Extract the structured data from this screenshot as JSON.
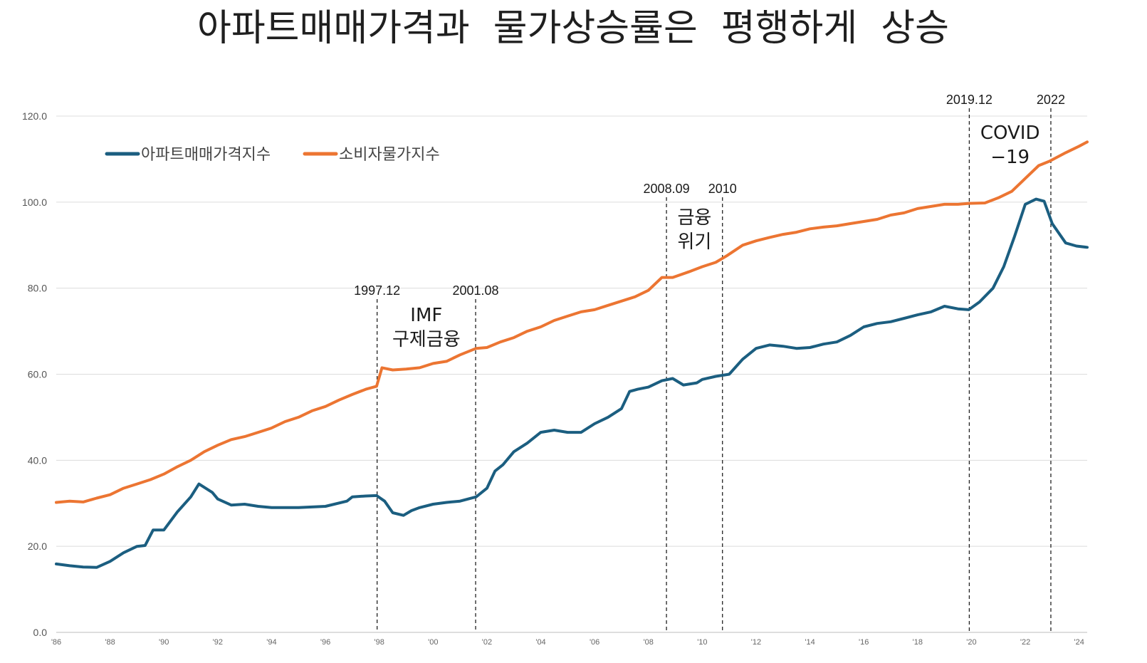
{
  "chart_data": {
    "type": "line",
    "title": "아파트매매가격과  물가상승률은  평행하게  상승",
    "xlabel": "",
    "ylabel": "",
    "x_range": [
      1986.0,
      2024.3
    ],
    "ylim": [
      0,
      120
    ],
    "y_ticks": [
      "0.0",
      "20.0",
      "40.0",
      "60.0",
      "80.0",
      "100.0",
      "120.0"
    ],
    "x_ticks": [
      {
        "year": 1986,
        "label": "'86"
      },
      {
        "year": 1988,
        "label": "'88"
      },
      {
        "year": 1990,
        "label": "'90"
      },
      {
        "year": 1992,
        "label": "'92"
      },
      {
        "year": 1994,
        "label": "'94"
      },
      {
        "year": 1996,
        "label": "'96"
      },
      {
        "year": 1998,
        "label": "'98"
      },
      {
        "year": 2000,
        "label": "'00"
      },
      {
        "year": 2002,
        "label": "'02"
      },
      {
        "year": 2004,
        "label": "'04"
      },
      {
        "year": 2006,
        "label": "'06"
      },
      {
        "year": 2008,
        "label": "'08"
      },
      {
        "year": 2010,
        "label": "'10"
      },
      {
        "year": 2012,
        "label": "'12"
      },
      {
        "year": 2014,
        "label": "'14"
      },
      {
        "year": 2016,
        "label": "'16"
      },
      {
        "year": 2018,
        "label": "'18"
      },
      {
        "year": 2020,
        "label": "'20"
      },
      {
        "year": 2022,
        "label": "'22"
      },
      {
        "year": 2024,
        "label": "'24"
      }
    ],
    "grid": true,
    "legend_position": "top-left",
    "series": [
      {
        "name": "아파트매매가격지수",
        "color": "#1b5e80",
        "points": [
          [
            1986.0,
            15.9
          ],
          [
            1986.5,
            15.5
          ],
          [
            1987.0,
            15.2
          ],
          [
            1987.5,
            15.1
          ],
          [
            1988.0,
            16.5
          ],
          [
            1988.5,
            18.5
          ],
          [
            1989.0,
            20.0
          ],
          [
            1989.3,
            20.2
          ],
          [
            1989.6,
            23.8
          ],
          [
            1990.0,
            23.8
          ],
          [
            1990.5,
            28.0
          ],
          [
            1991.0,
            31.5
          ],
          [
            1991.3,
            34.5
          ],
          [
            1991.8,
            32.5
          ],
          [
            1992.0,
            31.0
          ],
          [
            1992.5,
            29.6
          ],
          [
            1993.0,
            29.8
          ],
          [
            1993.5,
            29.3
          ],
          [
            1994.0,
            29.0
          ],
          [
            1995.0,
            29.0
          ],
          [
            1996.0,
            29.3
          ],
          [
            1996.8,
            30.5
          ],
          [
            1997.0,
            31.5
          ],
          [
            1997.5,
            31.7
          ],
          [
            1997.9,
            31.8
          ],
          [
            1998.2,
            30.5
          ],
          [
            1998.5,
            27.8
          ],
          [
            1998.9,
            27.2
          ],
          [
            1999.2,
            28.3
          ],
          [
            1999.5,
            29.0
          ],
          [
            2000.0,
            29.8
          ],
          [
            2000.5,
            30.2
          ],
          [
            2001.0,
            30.5
          ],
          [
            2001.6,
            31.5
          ],
          [
            2002.0,
            33.5
          ],
          [
            2002.3,
            37.5
          ],
          [
            2002.6,
            39.0
          ],
          [
            2003.0,
            42.0
          ],
          [
            2003.5,
            44.0
          ],
          [
            2004.0,
            46.5
          ],
          [
            2004.5,
            47.0
          ],
          [
            2005.0,
            46.5
          ],
          [
            2005.5,
            46.5
          ],
          [
            2006.0,
            48.5
          ],
          [
            2006.5,
            50.0
          ],
          [
            2007.0,
            52.0
          ],
          [
            2007.3,
            56.0
          ],
          [
            2007.6,
            56.5
          ],
          [
            2008.0,
            57.0
          ],
          [
            2008.5,
            58.5
          ],
          [
            2008.9,
            59.0
          ],
          [
            2009.3,
            57.5
          ],
          [
            2009.8,
            58.0
          ],
          [
            2010.0,
            58.8
          ],
          [
            2010.5,
            59.5
          ],
          [
            2011.0,
            60.0
          ],
          [
            2011.5,
            63.5
          ],
          [
            2012.0,
            66.0
          ],
          [
            2012.5,
            66.8
          ],
          [
            2013.0,
            66.5
          ],
          [
            2013.5,
            66.0
          ],
          [
            2014.0,
            66.2
          ],
          [
            2014.5,
            67.0
          ],
          [
            2015.0,
            67.5
          ],
          [
            2015.5,
            69.0
          ],
          [
            2016.0,
            71.0
          ],
          [
            2016.5,
            71.8
          ],
          [
            2017.0,
            72.2
          ],
          [
            2017.5,
            73.0
          ],
          [
            2018.0,
            73.8
          ],
          [
            2018.5,
            74.5
          ],
          [
            2019.0,
            75.8
          ],
          [
            2019.5,
            75.2
          ],
          [
            2019.9,
            75.0
          ],
          [
            2020.3,
            76.8
          ],
          [
            2020.8,
            80.0
          ],
          [
            2021.2,
            85.0
          ],
          [
            2021.6,
            92.0
          ],
          [
            2022.0,
            99.5
          ],
          [
            2022.4,
            100.7
          ],
          [
            2022.7,
            100.2
          ],
          [
            2023.0,
            95.0
          ],
          [
            2023.5,
            90.5
          ],
          [
            2023.9,
            89.8
          ],
          [
            2024.3,
            89.5
          ]
        ]
      },
      {
        "name": "소비자물가지수",
        "color": "#ec7532",
        "points": [
          [
            1986.0,
            30.2
          ],
          [
            1986.5,
            30.5
          ],
          [
            1987.0,
            30.3
          ],
          [
            1987.5,
            31.2
          ],
          [
            1988.0,
            32.0
          ],
          [
            1988.5,
            33.5
          ],
          [
            1989.0,
            34.5
          ],
          [
            1989.5,
            35.5
          ],
          [
            1990.0,
            36.8
          ],
          [
            1990.5,
            38.5
          ],
          [
            1991.0,
            40.0
          ],
          [
            1991.5,
            42.0
          ],
          [
            1992.0,
            43.5
          ],
          [
            1992.5,
            44.8
          ],
          [
            1993.0,
            45.5
          ],
          [
            1993.5,
            46.5
          ],
          [
            1994.0,
            47.5
          ],
          [
            1994.5,
            49.0
          ],
          [
            1995.0,
            50.0
          ],
          [
            1995.5,
            51.5
          ],
          [
            1996.0,
            52.5
          ],
          [
            1996.5,
            54.0
          ],
          [
            1997.0,
            55.3
          ],
          [
            1997.5,
            56.5
          ],
          [
            1997.9,
            57.2
          ],
          [
            1998.1,
            61.5
          ],
          [
            1998.5,
            61.0
          ],
          [
            1999.0,
            61.2
          ],
          [
            1999.5,
            61.5
          ],
          [
            2000.0,
            62.5
          ],
          [
            2000.5,
            63.0
          ],
          [
            2001.0,
            64.5
          ],
          [
            2001.6,
            66.0
          ],
          [
            2002.0,
            66.2
          ],
          [
            2002.5,
            67.5
          ],
          [
            2003.0,
            68.5
          ],
          [
            2003.5,
            70.0
          ],
          [
            2004.0,
            71.0
          ],
          [
            2004.5,
            72.5
          ],
          [
            2005.0,
            73.5
          ],
          [
            2005.5,
            74.5
          ],
          [
            2006.0,
            75.0
          ],
          [
            2006.5,
            76.0
          ],
          [
            2007.0,
            77.0
          ],
          [
            2007.5,
            78.0
          ],
          [
            2008.0,
            79.5
          ],
          [
            2008.5,
            82.5
          ],
          [
            2008.9,
            82.5
          ],
          [
            2009.5,
            83.8
          ],
          [
            2010.0,
            85.0
          ],
          [
            2010.5,
            86.0
          ],
          [
            2010.9,
            87.5
          ],
          [
            2011.5,
            90.0
          ],
          [
            2012.0,
            91.0
          ],
          [
            2012.5,
            91.8
          ],
          [
            2013.0,
            92.5
          ],
          [
            2013.5,
            93.0
          ],
          [
            2014.0,
            93.8
          ],
          [
            2014.5,
            94.2
          ],
          [
            2015.0,
            94.5
          ],
          [
            2015.5,
            95.0
          ],
          [
            2016.0,
            95.5
          ],
          [
            2016.5,
            96.0
          ],
          [
            2017.0,
            97.0
          ],
          [
            2017.5,
            97.5
          ],
          [
            2018.0,
            98.5
          ],
          [
            2018.5,
            99.0
          ],
          [
            2019.0,
            99.5
          ],
          [
            2019.5,
            99.5
          ],
          [
            2019.9,
            99.7
          ],
          [
            2020.5,
            99.8
          ],
          [
            2021.0,
            101.0
          ],
          [
            2021.5,
            102.5
          ],
          [
            2022.0,
            105.5
          ],
          [
            2022.5,
            108.5
          ],
          [
            2022.9,
            109.5
          ],
          [
            2023.5,
            111.5
          ],
          [
            2024.0,
            113.0
          ],
          [
            2024.3,
            114.0
          ]
        ]
      }
    ],
    "events": [
      {
        "x": 1997.92,
        "date": "1997.12",
        "lines": [
          "IMF",
          "구제금융"
        ]
      },
      {
        "x": 2001.58,
        "date": "2001.08"
      },
      {
        "x": 2008.67,
        "date": "2008.09",
        "lines": [
          "금융",
          "위기"
        ]
      },
      {
        "x": 2010.75,
        "date": "2010"
      },
      {
        "x": 2019.92,
        "date": "2019.12",
        "lines": [
          "COVID",
          "−19"
        ]
      },
      {
        "x": 2022.95,
        "date": "2022"
      }
    ]
  }
}
